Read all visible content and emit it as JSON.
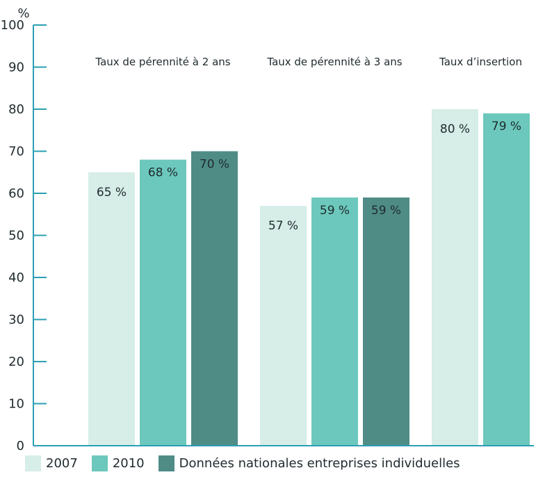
{
  "chart_data": {
    "type": "bar",
    "y_unit": "%",
    "ylim": [
      0,
      100
    ],
    "yticks": [
      0,
      10,
      20,
      30,
      40,
      50,
      60,
      70,
      80,
      90,
      100
    ],
    "grid": false,
    "legend_position": "bottom",
    "categories": [
      "Taux de pérennité à 2 ans",
      "Taux de pérennité à 3 ans",
      "Taux  d’insertion"
    ],
    "series": [
      {
        "name": "2007",
        "color": "#d6ede8",
        "values": [
          65,
          57,
          80
        ],
        "labels": [
          "65 %",
          "57 %",
          "80 %"
        ]
      },
      {
        "name": "2010",
        "color": "#6cc8bc",
        "values": [
          68,
          59,
          79
        ],
        "labels": [
          "68 %",
          "59 %",
          "79 %"
        ]
      },
      {
        "name": "Données nationales entreprises individuelles",
        "color": "#4f8c86",
        "values": [
          70,
          59,
          null
        ],
        "labels": [
          "70 %",
          "59 %",
          null
        ]
      }
    ],
    "axis_color": "#2a9fb3"
  }
}
